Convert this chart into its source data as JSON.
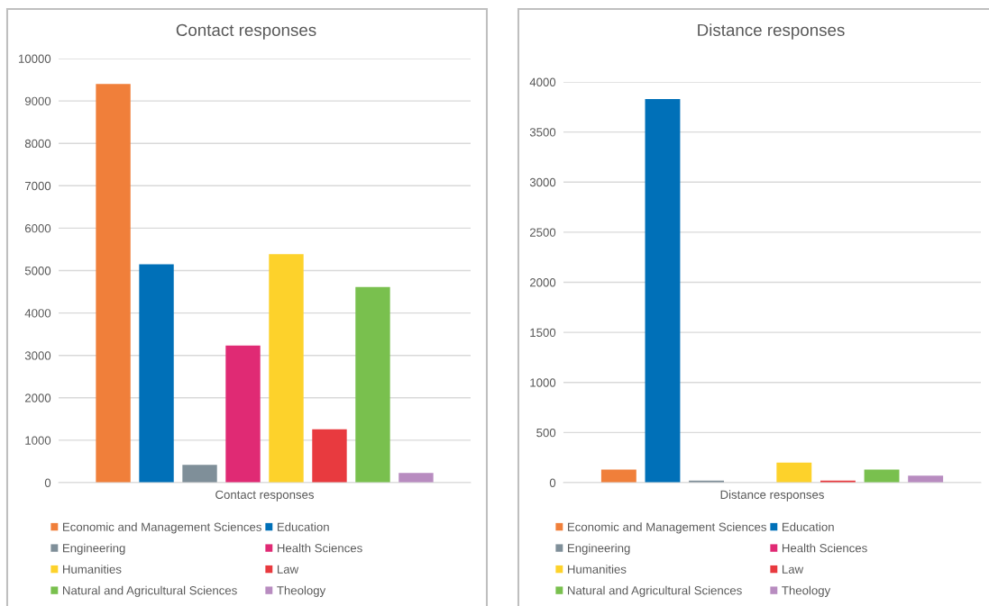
{
  "chart_data": [
    {
      "type": "bar",
      "title": "Contact responses",
      "categories": [
        "Contact responses"
      ],
      "ylim": [
        0,
        10000
      ],
      "yticks": [
        0,
        1000,
        2000,
        3000,
        4000,
        5000,
        6000,
        7000,
        8000,
        9000,
        10000
      ],
      "grid": "y",
      "legend": "bottom",
      "series": [
        {
          "name": "Economic and Management Sciences",
          "color": "#f07f3a",
          "values": [
            9400
          ]
        },
        {
          "name": "Education",
          "color": "#0070b8",
          "values": [
            5150
          ]
        },
        {
          "name": "Engineering",
          "color": "#7f8f99",
          "values": [
            420
          ]
        },
        {
          "name": "Health Sciences",
          "color": "#e02a74",
          "values": [
            3230
          ]
        },
        {
          "name": "Humanities",
          "color": "#fdd22b",
          "values": [
            5390
          ]
        },
        {
          "name": "Law",
          "color": "#e83a3f",
          "values": [
            1260
          ]
        },
        {
          "name": "Natural and Agricultural Sciences",
          "color": "#79c04e",
          "values": [
            4610
          ]
        },
        {
          "name": "Theology",
          "color": "#b88cc0",
          "values": [
            230
          ]
        }
      ]
    },
    {
      "type": "bar",
      "title": "Distance responses",
      "categories": [
        "Distance responses"
      ],
      "ylim": [
        0,
        4000
      ],
      "yticks": [
        0,
        500,
        1000,
        1500,
        2000,
        2500,
        3000,
        3500,
        4000
      ],
      "grid": "y",
      "legend": "bottom",
      "series": [
        {
          "name": "Economic and Management Sciences",
          "color": "#f07f3a",
          "values": [
            130
          ]
        },
        {
          "name": "Education",
          "color": "#0070b8",
          "values": [
            3830
          ]
        },
        {
          "name": "Engineering",
          "color": "#7f8f99",
          "values": [
            20
          ]
        },
        {
          "name": "Health Sciences",
          "color": "#e02a74",
          "values": [
            0
          ]
        },
        {
          "name": "Humanities",
          "color": "#fdd22b",
          "values": [
            200
          ]
        },
        {
          "name": "Law",
          "color": "#e83a3f",
          "values": [
            20
          ]
        },
        {
          "name": "Natural and Agricultural Sciences",
          "color": "#79c04e",
          "values": [
            130
          ]
        },
        {
          "name": "Theology",
          "color": "#b88cc0",
          "values": [
            70
          ]
        }
      ]
    }
  ]
}
